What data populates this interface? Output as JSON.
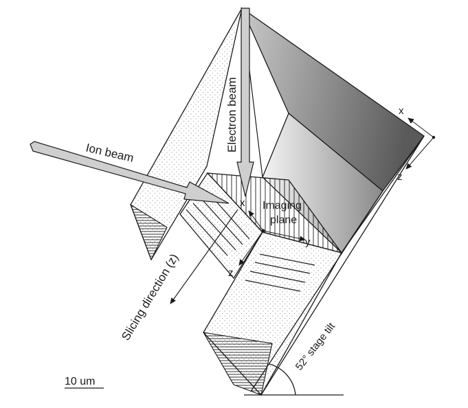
{
  "labels": {
    "electron_beam": "Electron beam",
    "ion_beam": "Ion beam",
    "imaging": "Imaging",
    "plane": "plane",
    "slicing_direction": "Slicing direction (z)",
    "stage_tilt": "52° stage tilt",
    "scale_bar": "10 um"
  },
  "axes": {
    "x_inset": "x",
    "y_inset": "y",
    "z_inset": "z",
    "x_corner": "x",
    "z_corner": "z"
  },
  "colors": {
    "outline": "#1a1a1a",
    "stipple": "#9a9a9a",
    "shade_dark": "#6e6e6e",
    "shade_light": "#eaeaea"
  }
}
